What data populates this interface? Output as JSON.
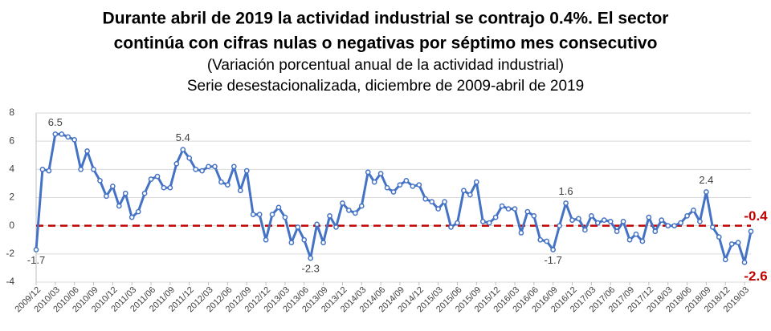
{
  "chart_data": {
    "type": "line",
    "title": [
      "Durante abril de 2019 la actividad industrial se contrajo 0.4%. El sector",
      "continúa con cifras nulas o negativas por séptimo mes consecutivo"
    ],
    "subtitle": [
      "(Variación porcentual anual de la actividad industrial)",
      "Serie desestacionalizada, diciembre de 2009-abril de 2019"
    ],
    "categories": [
      "2009/12",
      null,
      null,
      "2010/03",
      null,
      null,
      "2010/06",
      null,
      null,
      "2010/09",
      null,
      null,
      "2010/12",
      null,
      null,
      "2011/03",
      null,
      null,
      "2011/06",
      null,
      null,
      "2011/09",
      null,
      null,
      "2011/12",
      null,
      null,
      "2012/03",
      null,
      null,
      "2012/06",
      null,
      null,
      "2012/09",
      null,
      null,
      "2012/12",
      null,
      null,
      "2013/03",
      null,
      null,
      "2013/06",
      null,
      null,
      "2013/09",
      null,
      null,
      "2013/12",
      null,
      null,
      "2014/03",
      null,
      null,
      "2014/06",
      null,
      null,
      "2014/09",
      null,
      null,
      "2014/12",
      null,
      null,
      "2015/03",
      null,
      null,
      "2015/06",
      null,
      null,
      "2015/09",
      null,
      null,
      "2015/12",
      null,
      null,
      "2016/03",
      null,
      null,
      "2016/06",
      null,
      null,
      "2016/09",
      null,
      null,
      "2016/12",
      null,
      null,
      "2017/03",
      null,
      null,
      "2017/06",
      null,
      null,
      "2017/09",
      null,
      null,
      "2017/12",
      null,
      null,
      "2018/03",
      null,
      null,
      "2018/06",
      null,
      null,
      "2018/09",
      null,
      null,
      "2018/12",
      null,
      null,
      "2019/03",
      null
    ],
    "values": [
      -1.7,
      4.0,
      3.9,
      6.5,
      6.5,
      6.3,
      6.1,
      4.0,
      5.3,
      4.0,
      3.2,
      2.1,
      2.8,
      1.4,
      2.3,
      0.6,
      1.0,
      2.3,
      3.3,
      3.5,
      2.7,
      2.7,
      4.4,
      5.4,
      4.8,
      4.0,
      3.9,
      4.2,
      4.2,
      3.1,
      2.9,
      4.2,
      2.5,
      3.9,
      0.8,
      0.8,
      -1.0,
      0.8,
      1.3,
      0.6,
      -1.2,
      -0.1,
      -1.0,
      -2.3,
      0.1,
      -1.2,
      0.7,
      -0.1,
      1.6,
      1.1,
      0.9,
      1.4,
      3.8,
      3.1,
      3.7,
      2.7,
      2.4,
      2.9,
      3.2,
      2.8,
      2.9,
      1.9,
      1.7,
      1.2,
      1.7,
      -0.1,
      0.2,
      2.5,
      2.2,
      3.1,
      0.3,
      0.2,
      0.6,
      1.4,
      1.2,
      1.2,
      -0.5,
      1.0,
      0.7,
      -1.0,
      -1.1,
      -1.7,
      0.0,
      1.6,
      0.4,
      0.5,
      -0.3,
      0.7,
      0.2,
      0.4,
      0.3,
      -0.4,
      0.3,
      -1.0,
      -0.6,
      -1.1,
      0.6,
      -0.4,
      0.4,
      0.0,
      0.0,
      0.2,
      0.7,
      1.1,
      0.3,
      2.4,
      -0.1,
      -0.8,
      -2.4,
      -1.3,
      -1.2,
      -2.6,
      -0.4
    ],
    "value_labels": [
      "-1.7",
      null,
      null,
      "6.5",
      null,
      null,
      null,
      null,
      null,
      null,
      null,
      null,
      null,
      null,
      null,
      null,
      null,
      null,
      null,
      null,
      null,
      null,
      null,
      "5.4",
      null,
      null,
      null,
      null,
      null,
      null,
      null,
      null,
      null,
      null,
      null,
      null,
      null,
      null,
      null,
      null,
      null,
      null,
      null,
      "-2.3",
      null,
      null,
      null,
      null,
      null,
      null,
      null,
      null,
      null,
      null,
      null,
      null,
      null,
      null,
      null,
      null,
      null,
      null,
      null,
      null,
      null,
      null,
      null,
      null,
      null,
      null,
      null,
      null,
      null,
      null,
      null,
      null,
      null,
      null,
      null,
      null,
      null,
      "-1.7",
      null,
      "1.6",
      null,
      null,
      null,
      null,
      null,
      null,
      null,
      null,
      null,
      null,
      null,
      null,
      null,
      null,
      null,
      null,
      null,
      null,
      null,
      null,
      null,
      "2.4",
      null,
      null,
      null,
      null,
      null,
      "-2.6",
      "-0.4"
    ],
    "color": "#4472c4",
    "highlight_color": "#c00000",
    "reference_line": {
      "value": 0,
      "color": "#c00000"
    },
    "ylim": [
      -4,
      8
    ],
    "yticks": [
      -4,
      -2,
      0,
      2,
      4,
      6,
      8
    ],
    "grid": true
  }
}
